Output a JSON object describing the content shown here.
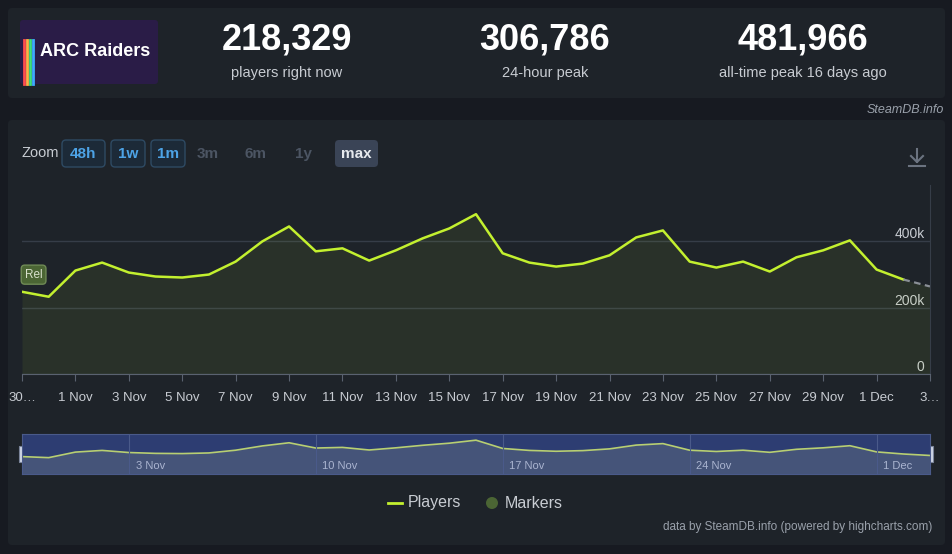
{
  "header": {
    "logo": "ARC Raiders",
    "stats": [
      {
        "value": "218,329",
        "label": "players right now"
      },
      {
        "value": "306,786",
        "label": "24-hour peak"
      },
      {
        "value": "481,966",
        "label": "all-time peak 16 days ago"
      }
    ],
    "source": "SteamDB.info"
  },
  "zoom": {
    "label": "Zoom",
    "buttons": [
      "48h",
      "1w",
      "1m",
      "3m",
      "6m",
      "1y",
      "max"
    ],
    "disabled": [
      "3m",
      "6m",
      "1y"
    ],
    "selected": "max"
  },
  "chart_data": {
    "type": "line",
    "categories": [
      "30…",
      null,
      "1 Nov",
      null,
      "3 Nov",
      null,
      "5 Nov",
      null,
      "7 Nov",
      null,
      "9 Nov",
      null,
      "11 Nov",
      null,
      "13 Nov",
      null,
      "15 Nov",
      null,
      "17 Nov",
      null,
      "19 Nov",
      null,
      "21 Nov",
      null,
      "23 Nov",
      null,
      "25 Nov",
      null,
      "27 Nov",
      null,
      "29 Nov",
      null,
      "1 Dec",
      null,
      "3…"
    ],
    "series": [
      {
        "name": "Players",
        "color": "#c3f02f",
        "values": [
          248000,
          233000,
          312000,
          336000,
          306000,
          294000,
          291000,
          300000,
          339000,
          400000,
          445000,
          370000,
          379000,
          342000,
          373000,
          409000,
          439000,
          481966,
          364000,
          336000,
          324000,
          333000,
          358000,
          412000,
          433000,
          339000,
          321000,
          339000,
          309000,
          352000,
          373000,
          403000,
          315000,
          285000,
          264000
        ]
      }
    ],
    "ylim": [
      0,
      570000
    ],
    "yticks": [
      0,
      {
        "value": 200000,
        "label": "200k"
      },
      {
        "value": 400000,
        "label": "400k"
      }
    ],
    "grid": true,
    "markers": {
      "name": "Markers",
      "color": "#4b6534",
      "items": [
        {
          "position": 0,
          "label": "Rel"
        }
      ]
    }
  },
  "navigator": {
    "ticks": [
      {
        "value": 4,
        "label": "3 Nov"
      },
      {
        "value": 11,
        "label": "10 Nov"
      },
      {
        "value": 18,
        "label": "17 Nov"
      },
      {
        "value": 25,
        "label": "24 Nov"
      },
      {
        "value": 32,
        "label": "1 Dec"
      }
    ]
  },
  "credit": "data by SteamDB.info (powered by highcharts.com)"
}
